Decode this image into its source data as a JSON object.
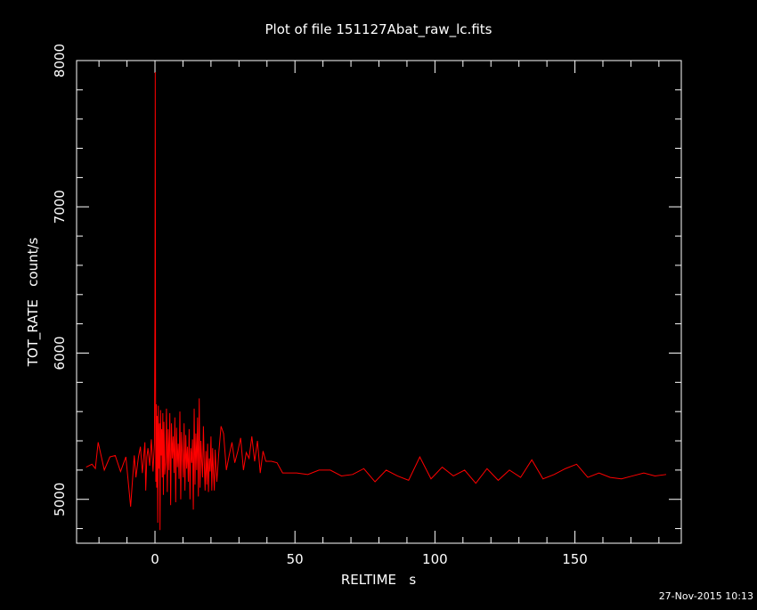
{
  "title": "Plot of file 151127Abat_raw_lc.fits",
  "timestamp": "27-Nov-2015 10:13",
  "colors": {
    "background": "#000000",
    "axes": "#ffffff",
    "series": "#ff0000"
  },
  "chart_data": {
    "type": "line",
    "title": "Plot of file 151127Abat_raw_lc.fits",
    "xlabel": "RELTIME   s",
    "ylabel": "TOT_RATE   count/s",
    "xlim": [
      -28,
      188
    ],
    "ylim": [
      4700,
      8000
    ],
    "xticks": [
      0,
      50,
      100,
      150
    ],
    "xtick_labels": [
      "0",
      "50",
      "100",
      "150"
    ],
    "yticks": [
      5000,
      6000,
      7000,
      8000
    ],
    "ytick_labels": [
      "5000",
      "6000",
      "7000",
      "8000"
    ],
    "grid": false,
    "legend": "none",
    "series": [
      {
        "x": [
          -24.6,
          -22.5,
          -21.3,
          -20.3,
          -18.1,
          -16.1,
          -14.2,
          -12.3,
          -10.4,
          -8.7,
          -7.4,
          -6.8,
          -5.9,
          -5.2,
          -4.5,
          -3.6,
          -3.3,
          -2.9,
          -2.5,
          -1.9,
          -1.3,
          -0.7,
          -0.2,
          0.0,
          0.1,
          0.2,
          0.3,
          0.4,
          0.5,
          0.6,
          0.8,
          1.0,
          1.2,
          1.4,
          1.6,
          1.8,
          2.0,
          2.2,
          2.4,
          2.6,
          2.8,
          3.0,
          3.2,
          3.5,
          3.8,
          4.1,
          4.4,
          4.7,
          5.0,
          5.3,
          5.6,
          5.9,
          6.2,
          6.5,
          6.8,
          7.1,
          7.4,
          7.7,
          8.0,
          8.3,
          8.6,
          8.9,
          9.2,
          9.5,
          9.8,
          10.1,
          10.4,
          10.7,
          11.0,
          11.3,
          11.6,
          11.9,
          12.2,
          12.5,
          12.8,
          13.1,
          13.4,
          13.7,
          14.0,
          14.3,
          14.6,
          14.9,
          15.2,
          15.5,
          15.8,
          16.1,
          16.4,
          16.7,
          17.0,
          17.3,
          17.6,
          17.9,
          18.2,
          18.5,
          18.8,
          19.1,
          19.4,
          19.7,
          20.0,
          20.3,
          20.6,
          20.9,
          21.2,
          21.5,
          21.8,
          22.1,
          22.8,
          23.6,
          24.5,
          25.5,
          26.5,
          27.5,
          28.5,
          29.6,
          30.6,
          31.6,
          32.6,
          33.6,
          34.6,
          35.6,
          36.6,
          37.6,
          38.6,
          39.6,
          41.6,
          43.6,
          45.6,
          47.6,
          50.6,
          54.6,
          58.6,
          62.6,
          66.6,
          70.6,
          74.6,
          78.6,
          82.6,
          86.6,
          90.6,
          94.6,
          98.6,
          102.6,
          106.6,
          110.6,
          114.6,
          118.6,
          122.6,
          126.6,
          130.6,
          134.6,
          138.6,
          142.6,
          146.6,
          150.6,
          154.6,
          158.6,
          162.6,
          166.6,
          170.6,
          174.6,
          178.6,
          182.6
        ],
        "values": [
          5220,
          5240,
          5210,
          5390,
          5200,
          5290,
          5300,
          5190,
          5290,
          4950,
          5300,
          5150,
          5290,
          5360,
          5180,
          5390,
          5060,
          5290,
          5350,
          5230,
          5410,
          5190,
          5380,
          6280,
          7920,
          5880,
          5120,
          5450,
          5650,
          5080,
          5570,
          4840,
          5640,
          5210,
          5520,
          4790,
          5610,
          5300,
          5480,
          5150,
          5590,
          5030,
          5530,
          5170,
          5250,
          5620,
          5050,
          5480,
          5200,
          5590,
          4960,
          5520,
          5280,
          5430,
          5180,
          5560,
          4980,
          5490,
          5220,
          5380,
          5140,
          5600,
          5000,
          5460,
          5300,
          5150,
          5520,
          5060,
          5440,
          5210,
          5360,
          5120,
          5480,
          5000,
          5350,
          5250,
          5410,
          4930,
          5620,
          5100,
          5450,
          5200,
          5560,
          5020,
          5690,
          5080,
          5400,
          5260,
          5150,
          5500,
          5250,
          5060,
          5330,
          5100,
          5380,
          5050,
          5280,
          5190,
          5430,
          5060,
          5350,
          5180,
          5060,
          5340,
          5220,
          5120,
          5320,
          5500,
          5450,
          5200,
          5300,
          5390,
          5250,
          5330,
          5420,
          5200,
          5320,
          5280,
          5430,
          5260,
          5400,
          5180,
          5330,
          5260,
          5260,
          5250,
          5180,
          5180,
          5180,
          5170,
          5200,
          5200,
          5160,
          5170,
          5210,
          5120,
          5200,
          5160,
          5130,
          5290,
          5140,
          5220,
          5160,
          5200,
          5110,
          5210,
          5130,
          5200,
          5150,
          5270,
          5140,
          5170,
          5210,
          5240,
          5150,
          5180,
          5150,
          5140,
          5160,
          5180,
          5160,
          5170
        ]
      }
    ]
  }
}
